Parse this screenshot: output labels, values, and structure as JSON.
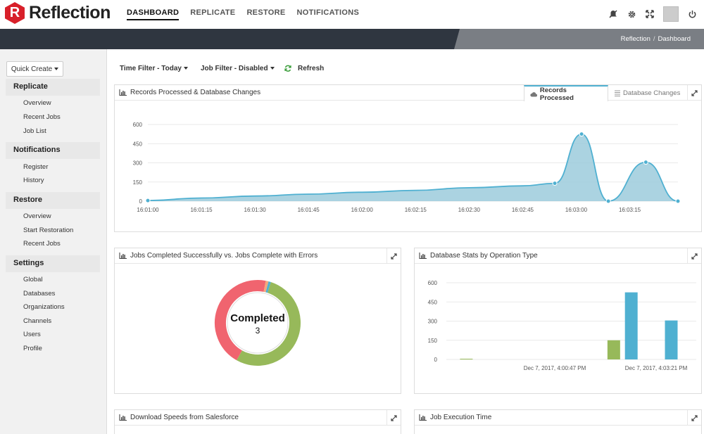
{
  "app": {
    "logo_letter": "R",
    "logo_text": "Reflection"
  },
  "nav": [
    {
      "label": "DASHBOARD"
    },
    {
      "label": "REPLICATE"
    },
    {
      "label": "RESTORE"
    },
    {
      "label": "NOTIFICATIONS"
    }
  ],
  "breadcrumb": {
    "root": "Reflection",
    "sep": "/",
    "current": "Dashboard"
  },
  "sidebar": {
    "quick_create": "Quick Create",
    "sections": [
      {
        "title": "Replicate",
        "items": [
          "Overview",
          "Recent Jobs",
          "Job List"
        ]
      },
      {
        "title": "Notifications",
        "items": [
          "Register",
          "History"
        ]
      },
      {
        "title": "Restore",
        "items": [
          "Overview",
          "Start Restoration",
          "Recent Jobs"
        ]
      },
      {
        "title": "Settings",
        "items": [
          "Global",
          "Databases",
          "Organizations",
          "Channels",
          "Users",
          "Profile"
        ]
      }
    ]
  },
  "filters": {
    "time": "Time Filter - Today",
    "job": "Job Filter - Disabled",
    "refresh": "Refresh"
  },
  "panels": {
    "records": {
      "title": "Records Processed & Database Changes",
      "tab1": "Records Processed",
      "tab2": "Database Changes"
    },
    "jobs": {
      "title": "Jobs Completed Successfully vs. Jobs Complete with Errors",
      "center_label": "Completed",
      "center_value": "3"
    },
    "dbstats": {
      "title": "Database Stats by Operation Type"
    },
    "download": {
      "title": "Download Speeds from Salesforce"
    },
    "exec": {
      "title": "Job Execution Time"
    }
  },
  "colors": {
    "accent": "#4fb0d1",
    "area": "#9ccbdc",
    "green": "#97b95a",
    "red": "#f0646f",
    "dark": "#2f3640"
  },
  "chart_data": [
    {
      "type": "area",
      "title": "Records Processed & Database Changes",
      "x": [
        "16:01:00",
        "16:01:15",
        "16:01:30",
        "16:01:45",
        "16:02:00",
        "16:02:15",
        "16:02:30",
        "16:02:45",
        "16:03:00",
        "16:03:15"
      ],
      "yticks": [
        0,
        150,
        300,
        450,
        600
      ],
      "ylim": [
        0,
        600
      ],
      "points": [
        {
          "t": 0,
          "v": 5
        },
        {
          "t": 20,
          "v": 25
        },
        {
          "t": 40,
          "v": 40
        },
        {
          "t": 60,
          "v": 55
        },
        {
          "t": 80,
          "v": 70
        },
        {
          "t": 100,
          "v": 85
        },
        {
          "t": 120,
          "v": 105
        },
        {
          "t": 140,
          "v": 120
        },
        {
          "t": 152,
          "v": 140
        },
        {
          "t": 162,
          "v": 525
        },
        {
          "t": 172,
          "v": 0
        },
        {
          "t": 186,
          "v": 305
        },
        {
          "t": 198,
          "v": 0
        }
      ]
    },
    {
      "type": "pie",
      "title": "Jobs Completed Successfully vs. Jobs Complete with Errors",
      "slices": [
        {
          "name": "Completed",
          "value": 51,
          "color": "#97b95a"
        },
        {
          "name": "Errors",
          "value": 43,
          "color": "#f0646f"
        },
        {
          "name": "Other1",
          "value": 1,
          "color": "#f4a77a"
        },
        {
          "name": "Other2",
          "value": 1,
          "color": "#4fb0d1"
        }
      ]
    },
    {
      "type": "bar",
      "title": "Database Stats by Operation Type",
      "xticks": [
        "Dec 7, 2017, 4:00:47 PM",
        "Dec 7, 2017, 4:03:21 PM"
      ],
      "yticks": [
        0,
        150,
        300,
        450,
        600
      ],
      "ylim": [
        0,
        600
      ],
      "bars": [
        {
          "pos": 0.08,
          "value": 0,
          "color": "#97b95a"
        },
        {
          "pos": 0.67,
          "value": 150,
          "color": "#97b95a"
        },
        {
          "pos": 0.74,
          "value": 525,
          "color": "#4fb0d1"
        },
        {
          "pos": 0.9,
          "value": 305,
          "color": "#4fb0d1"
        }
      ]
    }
  ]
}
